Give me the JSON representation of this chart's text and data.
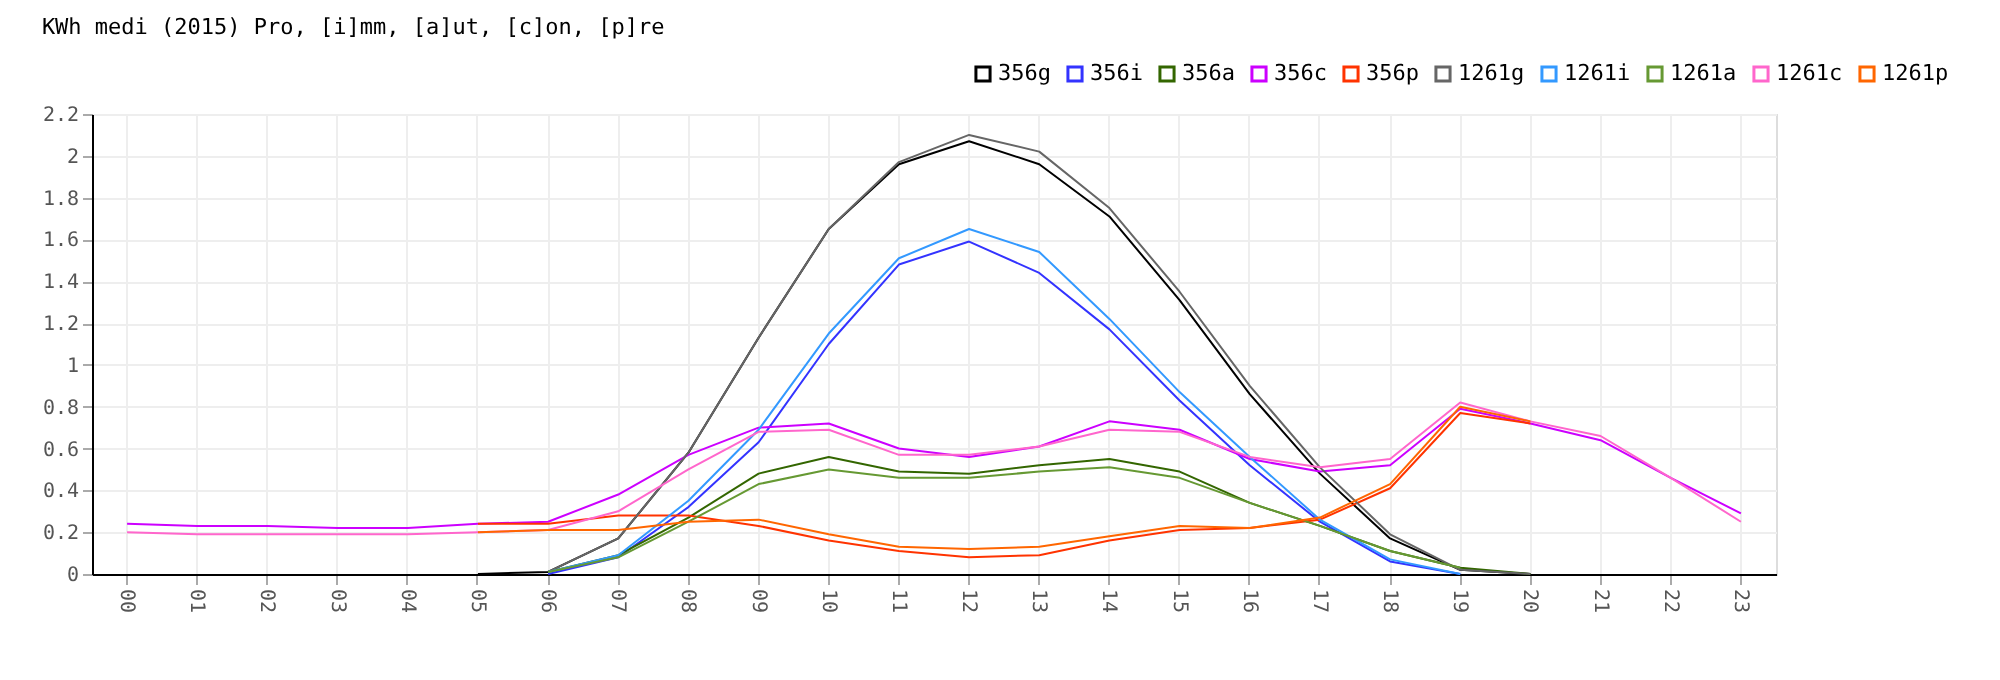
{
  "chart_data": {
    "type": "line",
    "title": "KWh medi (2015) Pro, [i]mm, [a]ut, [c]on, [p]re",
    "categories": [
      "00",
      "01",
      "02",
      "03",
      "04",
      "05",
      "06",
      "07",
      "08",
      "09",
      "10",
      "11",
      "12",
      "13",
      "14",
      "15",
      "16",
      "17",
      "18",
      "19",
      "20",
      "21",
      "22",
      "23"
    ],
    "ylim": [
      0,
      2.2
    ],
    "yticks": [
      0,
      0.2,
      0.4,
      0.6,
      0.8,
      1,
      1.2,
      1.4,
      1.6,
      1.8,
      2,
      2.2
    ],
    "grid": true,
    "legend": "top right",
    "marker": "none",
    "line_style": "solid",
    "series": [
      {
        "name": "356g",
        "color": "#000000",
        "values": [
          null,
          null,
          null,
          null,
          null,
          0,
          0.01,
          0.17,
          0.58,
          1.13,
          1.65,
          1.96,
          2.07,
          1.96,
          1.71,
          1.31,
          0.86,
          0.48,
          0.17,
          0.02,
          0,
          null,
          null,
          null
        ]
      },
      {
        "name": "356i",
        "color": "#3333ff",
        "values": [
          null,
          null,
          null,
          null,
          null,
          null,
          0,
          0.08,
          0.32,
          0.63,
          1.1,
          1.48,
          1.59,
          1.44,
          1.17,
          0.83,
          0.52,
          0.25,
          0.06,
          0,
          null,
          null,
          null,
          null
        ]
      },
      {
        "name": "356a",
        "color": "#336600",
        "values": [
          null,
          null,
          null,
          null,
          null,
          null,
          0.01,
          0.09,
          0.27,
          0.48,
          0.56,
          0.49,
          0.48,
          0.52,
          0.55,
          0.49,
          0.34,
          0.23,
          0.11,
          0.03,
          0,
          null,
          null,
          null
        ]
      },
      {
        "name": "356c",
        "color": "#cc00ff",
        "values": [
          0.24,
          0.23,
          0.23,
          0.22,
          0.22,
          0.24,
          0.25,
          0.38,
          0.57,
          0.7,
          0.72,
          0.6,
          0.56,
          0.61,
          0.73,
          0.69,
          0.55,
          0.49,
          0.52,
          0.79,
          0.72,
          0.64,
          0.46,
          0.29
        ]
      },
      {
        "name": "356p",
        "color": "#ff3300",
        "values": [
          null,
          null,
          null,
          null,
          null,
          0.24,
          0.24,
          0.28,
          0.28,
          0.23,
          0.16,
          0.11,
          0.08,
          0.09,
          0.16,
          0.21,
          0.22,
          0.26,
          0.41,
          0.77,
          0.72,
          null,
          null,
          null
        ]
      },
      {
        "name": "1261g",
        "color": "#666666",
        "values": [
          null,
          null,
          null,
          null,
          null,
          null,
          0.01,
          0.17,
          0.58,
          1.13,
          1.65,
          1.97,
          2.1,
          2.02,
          1.75,
          1.35,
          0.9,
          0.51,
          0.19,
          0.02,
          0,
          null,
          null,
          null
        ]
      },
      {
        "name": "1261i",
        "color": "#3399ff",
        "values": [
          null,
          null,
          null,
          null,
          null,
          null,
          0.01,
          0.09,
          0.35,
          0.69,
          1.15,
          1.51,
          1.65,
          1.54,
          1.22,
          0.87,
          0.56,
          0.26,
          0.07,
          0,
          null,
          null,
          null,
          null
        ]
      },
      {
        "name": "1261a",
        "color": "#669933",
        "values": [
          null,
          null,
          null,
          null,
          null,
          null,
          0.01,
          0.08,
          0.25,
          0.43,
          0.5,
          0.46,
          0.46,
          0.49,
          0.51,
          0.46,
          0.34,
          0.23,
          0.11,
          0.03,
          null,
          null,
          null,
          null
        ]
      },
      {
        "name": "1261c",
        "color": "#ff66cc",
        "values": [
          0.2,
          0.19,
          0.19,
          0.19,
          0.19,
          0.2,
          0.21,
          0.3,
          0.5,
          0.68,
          0.69,
          0.57,
          0.57,
          0.61,
          0.69,
          0.68,
          0.56,
          0.51,
          0.55,
          0.82,
          0.73,
          0.66,
          0.46,
          0.25
        ]
      },
      {
        "name": "1261p",
        "color": "#ff6600",
        "values": [
          null,
          null,
          null,
          null,
          null,
          0.2,
          0.21,
          0.21,
          0.25,
          0.26,
          0.19,
          0.13,
          0.12,
          0.13,
          0.18,
          0.23,
          0.22,
          0.27,
          0.43,
          0.8,
          0.73,
          null,
          null,
          null
        ]
      }
    ]
  }
}
